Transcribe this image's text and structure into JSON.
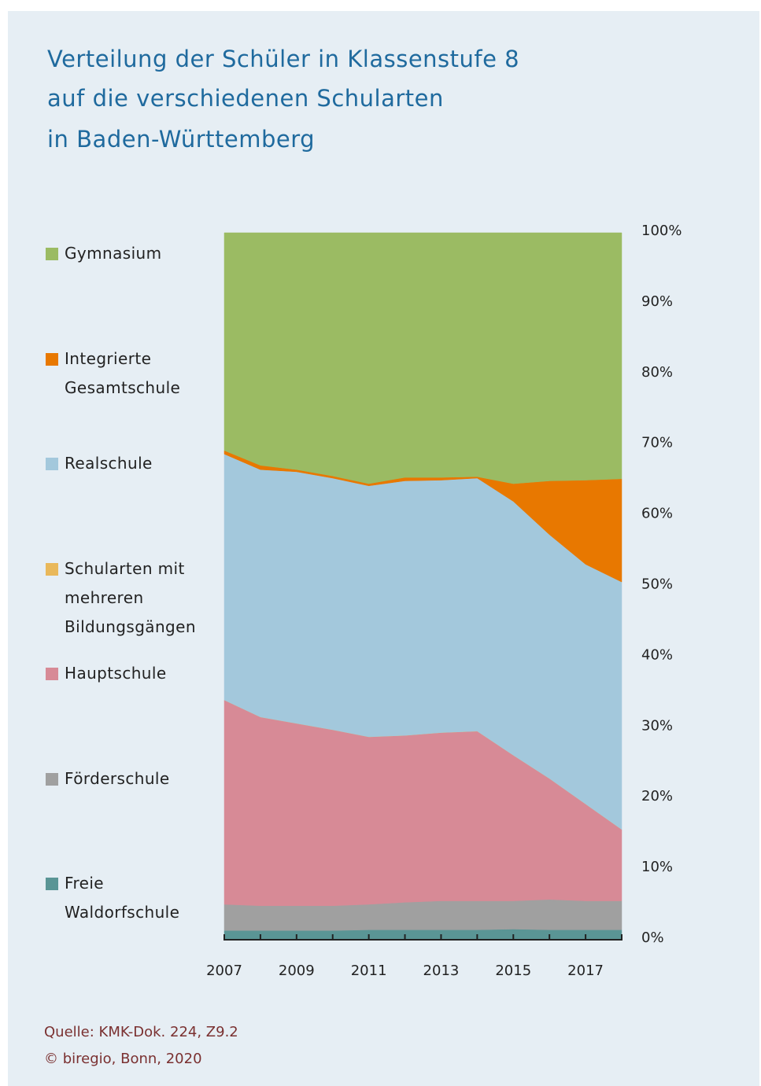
{
  "chart_data": {
    "type": "stacked_area",
    "title": [
      "Verteilung der Schüler in Klassenstufe 8",
      "auf die verschiedenen Schularten",
      "in Baden-Württemberg"
    ],
    "x": [
      2007,
      2008,
      2009,
      2010,
      2011,
      2012,
      2013,
      2014,
      2015,
      2016,
      2017,
      2018
    ],
    "xlim": [
      2007,
      2018
    ],
    "xticks": [
      2007,
      2009,
      2011,
      2013,
      2015,
      2017
    ],
    "ylim": [
      0,
      100
    ],
    "yticks": [
      {
        "value": 0,
        "label": "0%"
      },
      {
        "value": 10,
        "label": "10%"
      },
      {
        "value": 20,
        "label": "20%"
      },
      {
        "value": 30,
        "label": "30%"
      },
      {
        "value": 40,
        "label": "40%"
      },
      {
        "value": 50,
        "label": "50%"
      },
      {
        "value": 60,
        "label": "60%"
      },
      {
        "value": 70,
        "label": "70%"
      },
      {
        "value": 80,
        "label": "80%"
      },
      {
        "value": 90,
        "label": "90%"
      },
      {
        "value": 100,
        "label": "100%"
      }
    ],
    "grid": false,
    "legend": "left",
    "series": [
      {
        "name": "Freie Waldorfschule",
        "color": "#5a9595",
        "values": [
          1.3,
          1.3,
          1.3,
          1.3,
          1.4,
          1.4,
          1.4,
          1.4,
          1.5,
          1.4,
          1.4,
          1.4
        ]
      },
      {
        "name": "Förderschule",
        "color": "#a0a0a0",
        "values": [
          3.7,
          3.5,
          3.5,
          3.5,
          3.6,
          3.9,
          4.1,
          4.1,
          4.0,
          4.3,
          4.1,
          4.1
        ]
      },
      {
        "name": "Hauptschule",
        "color": "#d78a96",
        "values": [
          28.9,
          26.7,
          25.8,
          24.9,
          23.7,
          23.6,
          23.8,
          24.0,
          20.6,
          17.1,
          13.7,
          10.1
        ]
      },
      {
        "name": "Schularten mit mehreren Bildungsgängen",
        "color": "#e9b85a",
        "values": [
          0,
          0,
          0,
          0,
          0,
          0,
          0,
          0,
          0,
          0,
          0,
          0
        ]
      },
      {
        "name": "Realschule",
        "color": "#a3c8dc",
        "values": [
          34.8,
          35.0,
          35.6,
          35.6,
          35.5,
          36.0,
          35.7,
          35.8,
          35.9,
          34.5,
          33.9,
          35.0
        ]
      },
      {
        "name": "Integrierte Gesamtschule",
        "color": "#e87800",
        "values": [
          0.5,
          0.6,
          0.3,
          0.3,
          0.3,
          0.5,
          0.4,
          0.2,
          2.5,
          7.6,
          11.9,
          14.6
        ]
      },
      {
        "name": "Gymnasium",
        "color": "#9bbb63",
        "values": [
          30.8,
          32.9,
          33.5,
          34.4,
          35.5,
          34.6,
          34.6,
          34.5,
          35.5,
          35.1,
          35.0,
          34.8
        ]
      }
    ],
    "source": "Quelle: KMK-Dok. 224, Z9.2",
    "copyright": "© biregio, Bonn, 2020"
  }
}
